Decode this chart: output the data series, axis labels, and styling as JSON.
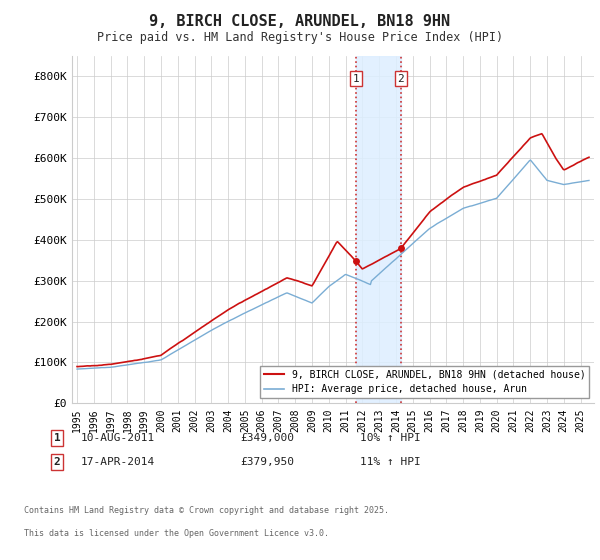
{
  "title": "9, BIRCH CLOSE, ARUNDEL, BN18 9HN",
  "subtitle": "Price paid vs. HM Land Registry's House Price Index (HPI)",
  "hpi_color": "#7aadd4",
  "price_color": "#cc1111",
  "highlight_color": "#ddeeff",
  "background_color": "#ffffff",
  "grid_color": "#cccccc",
  "ylim": [
    0,
    850000
  ],
  "yticks": [
    0,
    100000,
    200000,
    300000,
    400000,
    500000,
    600000,
    700000,
    800000
  ],
  "ytick_labels": [
    "£0",
    "£100K",
    "£200K",
    "£300K",
    "£400K",
    "£500K",
    "£600K",
    "£700K",
    "£800K"
  ],
  "sale1_date": "10-AUG-2011",
  "sale1_price": 349000,
  "sale1_price_str": "£349,000",
  "sale1_hpi": "10% ↑ HPI",
  "sale1_x": 2011.6,
  "sale1_y": 349000,
  "sale2_date": "17-APR-2014",
  "sale2_price": 379950,
  "sale2_price_str": "£379,950",
  "sale2_hpi": "11% ↑ HPI",
  "sale2_x": 2014.29,
  "sale2_y": 379950,
  "legend_label1": "9, BIRCH CLOSE, ARUNDEL, BN18 9HN (detached house)",
  "legend_label2": "HPI: Average price, detached house, Arun",
  "footnote1": "Contains HM Land Registry data © Crown copyright and database right 2025.",
  "footnote2": "This data is licensed under the Open Government Licence v3.0.",
  "xmin": 1994.7,
  "xmax": 2025.8,
  "noise_scale_hpi": 2500,
  "noise_scale_price": 3500
}
